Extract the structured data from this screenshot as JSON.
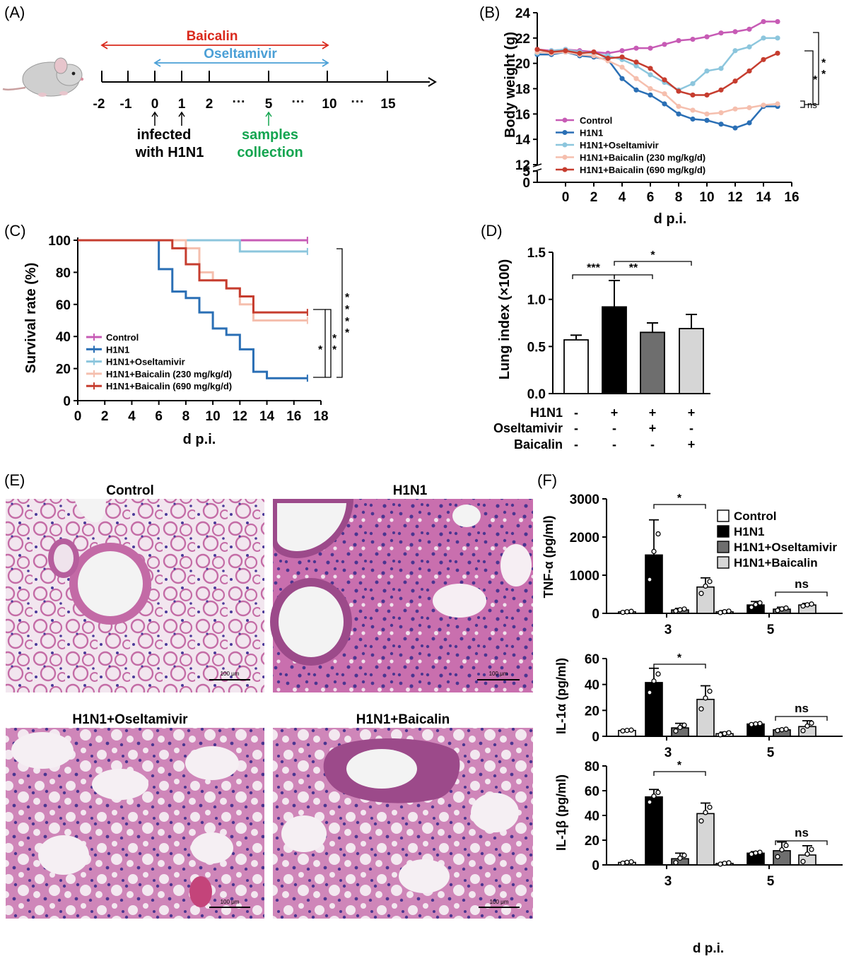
{
  "panels": {
    "A": {
      "letter": "(A)",
      "baicalin_label": "Baicalin",
      "oseltamivir_label": "Oseltamivir",
      "ticks": [
        "-2",
        "-1",
        "0",
        "1",
        "2",
        "···",
        "5",
        "···",
        "10",
        "···",
        "15"
      ],
      "infected_line1": "infected",
      "infected_line2": "with H1N1",
      "samples_line1": "samples",
      "samples_line2": "collection",
      "colors": {
        "baicalin": "#d9291c",
        "oseltamivir": "#4a9fd6",
        "samples": "#14a550"
      }
    },
    "B": {
      "letter": "(B)"
    },
    "C": {
      "letter": "(C)"
    },
    "D": {
      "letter": "(D)",
      "rows": [
        {
          "name": "H1N1",
          "signs": [
            "-",
            "+",
            "+",
            "+"
          ]
        },
        {
          "name": "Oseltamivir",
          "signs": [
            "-",
            "-",
            "+",
            "-"
          ]
        },
        {
          "name": "Baicalin",
          "signs": [
            "-",
            "-",
            "-",
            "+"
          ]
        }
      ]
    },
    "E": {
      "letter": "(E)",
      "titles": [
        "Control",
        "H1N1",
        "H1N1+Oseltamivir",
        "H1N1+Baicalin"
      ],
      "scalebar": "100 μm"
    },
    "F": {
      "letter": "(F)"
    }
  },
  "chart_data": [
    {
      "id": "B",
      "type": "line",
      "xlabel": "d p.i.",
      "ylabel": "Body weight (g)",
      "xlim": [
        -2,
        16
      ],
      "ylim": [
        0,
        24
      ],
      "xticks": [
        "0",
        "2",
        "4",
        "6",
        "8",
        "10",
        "12",
        "14",
        "16"
      ],
      "yticks": [
        "0",
        "5",
        "12",
        "14",
        "16",
        "18",
        "20",
        "22",
        "24"
      ],
      "x": [
        -2,
        -1,
        0,
        1,
        2,
        3,
        4,
        5,
        6,
        7,
        8,
        9,
        10,
        11,
        12,
        13,
        14,
        15
      ],
      "series": [
        {
          "name": "Control",
          "color": "#c75bb5",
          "values": [
            21.1,
            21.0,
            21.1,
            21.0,
            20.9,
            20.8,
            21.0,
            21.2,
            21.2,
            21.5,
            21.8,
            21.9,
            22.1,
            22.4,
            22.5,
            22.7,
            23.3,
            23.3
          ]
        },
        {
          "name": "H1N1",
          "color": "#2a6fb5",
          "values": [
            20.7,
            20.7,
            20.9,
            20.6,
            20.5,
            20.3,
            18.8,
            17.9,
            17.5,
            16.8,
            16.0,
            15.6,
            15.5,
            15.2,
            14.9,
            15.3,
            16.6,
            16.6
          ]
        },
        {
          "name": "H1N1+Oseltamivir",
          "color": "#8cc6dd",
          "values": [
            20.8,
            21.0,
            21.1,
            20.9,
            20.8,
            20.6,
            20.3,
            19.8,
            19.1,
            18.5,
            17.9,
            18.4,
            19.4,
            19.6,
            21.0,
            21.3,
            22.0,
            22.0
          ]
        },
        {
          "name": "H1N1+Baicalin (230 mg/kg/d)",
          "color": "#f5bfae",
          "values": [
            20.9,
            20.8,
            20.9,
            20.7,
            20.6,
            20.2,
            19.7,
            18.8,
            18.0,
            17.6,
            16.6,
            16.3,
            16.0,
            16.1,
            16.4,
            16.5,
            16.7,
            16.8
          ]
        },
        {
          "name": "H1N1+Baicalin (690 mg/kg/d)",
          "color": "#c63d2f",
          "values": [
            21.1,
            20.9,
            21.0,
            20.8,
            20.9,
            20.4,
            20.5,
            20.1,
            19.6,
            18.7,
            17.8,
            17.5,
            17.5,
            17.9,
            18.6,
            19.4,
            20.3,
            20.8
          ]
        }
      ],
      "significance": [
        "*",
        "*",
        "*",
        "ns"
      ]
    },
    {
      "id": "C",
      "type": "line",
      "xlabel": "d p.i.",
      "ylabel": "Survival rate (%)",
      "xlim": [
        0,
        18
      ],
      "ylim": [
        0,
        100
      ],
      "xticks": [
        "0",
        "2",
        "4",
        "6",
        "8",
        "10",
        "12",
        "14",
        "16",
        "18"
      ],
      "yticks": [
        "0",
        "20",
        "40",
        "60",
        "80",
        "100"
      ],
      "series": [
        {
          "name": "Control",
          "color": "#c75bb5",
          "steps": [
            [
              0,
              100
            ],
            [
              17,
              100
            ]
          ]
        },
        {
          "name": "H1N1",
          "color": "#2a6fb5",
          "steps": [
            [
              0,
              100
            ],
            [
              6,
              82
            ],
            [
              7,
              68
            ],
            [
              8,
              64
            ],
            [
              9,
              55
            ],
            [
              10,
              45
            ],
            [
              11,
              41
            ],
            [
              12,
              32
            ],
            [
              13,
              18
            ],
            [
              14,
              14
            ],
            [
              17,
              14
            ]
          ]
        },
        {
          "name": "H1N1+Oseltamivir",
          "color": "#8cc6dd",
          "steps": [
            [
              0,
              100
            ],
            [
              12,
              93
            ],
            [
              17,
              93
            ]
          ]
        },
        {
          "name": "H1N1+Baicalin (230 mg/kg/d)",
          "color": "#f5bfae",
          "steps": [
            [
              0,
              100
            ],
            [
              8,
              95
            ],
            [
              9,
              80
            ],
            [
              10,
              75
            ],
            [
              11,
              70
            ],
            [
              12,
              60
            ],
            [
              13,
              50
            ],
            [
              17,
              50
            ]
          ]
        },
        {
          "name": "H1N1+Baicalin (690 mg/kg/d)",
          "color": "#c63d2f",
          "steps": [
            [
              0,
              100
            ],
            [
              7,
              95
            ],
            [
              8,
              85
            ],
            [
              9,
              75
            ],
            [
              11,
              70
            ],
            [
              12,
              65
            ],
            [
              13,
              55
            ],
            [
              17,
              55
            ]
          ]
        }
      ],
      "significance": [
        "*",
        "**",
        "****"
      ]
    },
    {
      "id": "D",
      "type": "bar",
      "ylabel": "Lung index (×100)",
      "ylim": [
        0,
        1.5
      ],
      "yticks": [
        "0.0",
        "0.5",
        "1.0",
        "1.5"
      ],
      "values": [
        0.57,
        0.92,
        0.65,
        0.69
      ],
      "errors": [
        0.05,
        0.28,
        0.1,
        0.15
      ],
      "colors": [
        "#ffffff",
        "#000000",
        "#6e6e6e",
        "#d6d6d6"
      ],
      "significance": [
        "***",
        "**",
        "*"
      ]
    },
    {
      "id": "F",
      "type": "bar",
      "xlabel": "d p.i.",
      "categories": [
        "3",
        "5"
      ],
      "legend": [
        "Control",
        "H1N1",
        "H1N1+Oseltamivir",
        "H1N1+Baicalin"
      ],
      "colors": [
        "#ffffff",
        "#000000",
        "#6e6e6e",
        "#d6d6d6"
      ],
      "subplots": [
        {
          "ylabel": "TNF-α (pg/ml)",
          "ylim": [
            0,
            3000
          ],
          "yticks": [
            "0",
            "1000",
            "2000",
            "3000"
          ],
          "values": [
            [
              40,
              1530,
              90,
              690
            ],
            [
              40,
              220,
              110,
              220
            ]
          ],
          "errors": [
            [
              20,
              920,
              40,
              240
            ],
            [
              30,
              90,
              50,
              40
            ]
          ],
          "sig": [
            "*",
            "ns"
          ]
        },
        {
          "ylabel": "IL-1α (pg/ml)",
          "ylim": [
            0,
            60
          ],
          "yticks": [
            "0",
            "20",
            "40",
            "60"
          ],
          "values": [
            [
              4.5,
              41.5,
              6.5,
              28.5
            ],
            [
              2.0,
              9.5,
              5.0,
              7.5
            ]
          ],
          "errors": [
            [
              0.5,
              11,
              3.5,
              10.5
            ],
            [
              1.2,
              0.6,
              0.8,
              4.5
            ]
          ],
          "sig": [
            "*",
            "ns"
          ]
        },
        {
          "ylabel": "IL-1β (pg/ml)",
          "ylim": [
            0,
            80
          ],
          "yticks": [
            "0",
            "20",
            "40",
            "60",
            "80"
          ],
          "values": [
            [
              2,
              55,
              5,
              41.5
            ],
            [
              1.2,
              9.5,
              11.5,
              8
            ]
          ],
          "errors": [
            [
              0.8,
              6,
              4.5,
              8.5
            ],
            [
              0.8,
              1.2,
              7,
              7.5
            ]
          ],
          "sig": [
            "*",
            "ns"
          ]
        }
      ]
    }
  ]
}
